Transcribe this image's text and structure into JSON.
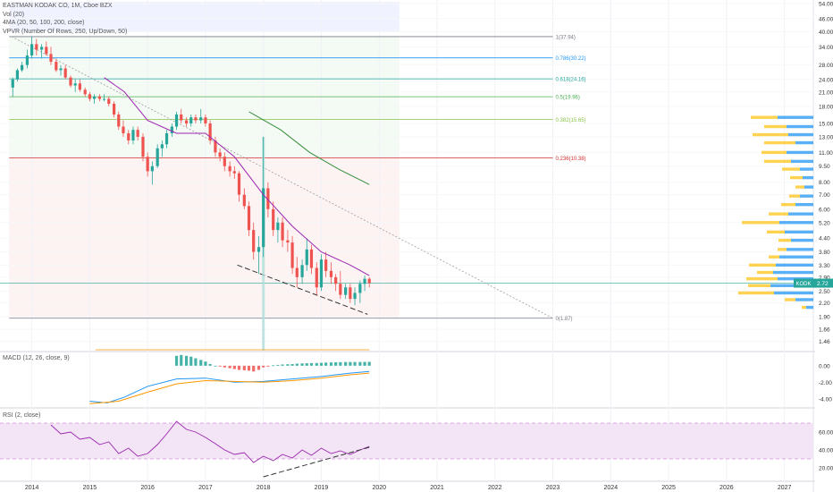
{
  "header": {
    "symbol_line": "EASTMAN KODAK CO, 1M, Cboe BZX",
    "indicators": [
      "Vol (20)",
      "4MA (20, 50, 100, 200, close)",
      "VPVR (Number Of Rows, 250, Up/Down, 50)"
    ],
    "macd_label": "MACD (12, 26, close, 9)",
    "rsi_label": "RSI (2, close)"
  },
  "price_badge": {
    "symbol": "KODK",
    "price": "2.72",
    "color": "#26a69a"
  },
  "colors": {
    "up": "#26a69a",
    "down": "#ef5350",
    "ma_fast": "#9c27b0",
    "ma_slow": "#388e3c",
    "macd": "#2196f3",
    "signal": "#ff9800",
    "rsi": "#9c27b0",
    "rsi_band": "#f3e5f5",
    "vpvr_up": "#2196f3",
    "vpvr_down": "#ffc107"
  },
  "chart_data": [
    {
      "type": "candlestick",
      "x_labels": [
        "2014",
        "2015",
        "2016",
        "2017",
        "2018",
        "2019",
        "2020",
        "2021",
        "2022",
        "2023",
        "2024",
        "2025",
        "2026",
        "2027"
      ],
      "x_range": [
        2013.45,
        2027.5
      ],
      "y_scale": "log",
      "y_range": [
        1.4,
        54
      ],
      "y_ticks": [
        "54.00",
        "46.00",
        "40.00",
        "34.00",
        "28.00",
        "24.00",
        "21.00",
        "18.00",
        "15.00",
        "13.00",
        "11.00",
        "9.50",
        "8.00",
        "7.00",
        "6.00",
        "5.20",
        "4.40",
        "3.80",
        "3.30",
        "2.90",
        "2.50",
        "2.20",
        "1.90",
        "1.66",
        "1.46"
      ],
      "grid": true,
      "candles": [
        [
          2013.67,
          22,
          24.5,
          20,
          24
        ],
        [
          2013.75,
          24,
          27,
          23.5,
          26.5
        ],
        [
          2013.83,
          26.5,
          29,
          26,
          28
        ],
        [
          2013.92,
          28,
          33,
          27,
          31
        ],
        [
          2014.0,
          31,
          38,
          30,
          35
        ],
        [
          2014.08,
          35,
          37,
          31,
          33
        ],
        [
          2014.17,
          33,
          35,
          30,
          34
        ],
        [
          2014.25,
          34,
          36,
          31,
          31.5
        ],
        [
          2014.33,
          31.5,
          34,
          28,
          29
        ],
        [
          2014.42,
          29,
          30,
          26,
          26.5
        ],
        [
          2014.5,
          26.5,
          28,
          25,
          27
        ],
        [
          2014.58,
          27,
          28,
          24,
          24.5
        ],
        [
          2014.67,
          24.5,
          25,
          22,
          22.5
        ],
        [
          2014.75,
          22.5,
          24,
          21,
          23
        ],
        [
          2014.83,
          23,
          24,
          21,
          21.5
        ],
        [
          2014.92,
          21.5,
          22,
          20,
          20.5
        ],
        [
          2015.0,
          20.5,
          21,
          19,
          19.5
        ],
        [
          2015.08,
          19.5,
          20.5,
          18.5,
          20
        ],
        [
          2015.17,
          20,
          20.5,
          19,
          19.5
        ],
        [
          2015.25,
          19.5,
          20.5,
          19,
          19.5
        ],
        [
          2015.33,
          19.5,
          20,
          18,
          18.5
        ],
        [
          2015.42,
          18.5,
          19,
          16,
          16.5
        ],
        [
          2015.5,
          16.5,
          17,
          14,
          14.5
        ],
        [
          2015.58,
          14.5,
          15.5,
          13,
          13.5
        ],
        [
          2015.67,
          13.5,
          14,
          12,
          12.5
        ],
        [
          2015.75,
          12.5,
          14.5,
          12,
          14
        ],
        [
          2015.83,
          14,
          14.5,
          12.5,
          13
        ],
        [
          2015.92,
          13,
          13.5,
          10,
          10.5
        ],
        [
          2016.0,
          10.5,
          11,
          8.5,
          9
        ],
        [
          2016.08,
          9,
          10,
          7.8,
          9.5
        ],
        [
          2016.17,
          9.5,
          12,
          9.3,
          11.5
        ],
        [
          2016.25,
          11.5,
          12.5,
          10.5,
          12
        ],
        [
          2016.33,
          12,
          14,
          11.5,
          13.5
        ],
        [
          2016.42,
          13.5,
          15,
          13,
          14.5
        ],
        [
          2016.5,
          14.5,
          17,
          14,
          16.5
        ],
        [
          2016.58,
          16.5,
          17.5,
          15,
          15.5
        ],
        [
          2016.67,
          15.5,
          16,
          14.5,
          15
        ],
        [
          2016.75,
          15,
          16.5,
          14.5,
          16
        ],
        [
          2016.83,
          16,
          16.5,
          15,
          15.5
        ],
        [
          2016.92,
          15.5,
          17.5,
          15,
          16
        ],
        [
          2017.0,
          16,
          16.5,
          14.5,
          15
        ],
        [
          2017.08,
          15,
          15.5,
          12,
          12.5
        ],
        [
          2017.17,
          12.5,
          13,
          10.5,
          11
        ],
        [
          2017.25,
          11,
          11.5,
          10,
          10.5
        ],
        [
          2017.33,
          10.5,
          11,
          9,
          9.5
        ],
        [
          2017.42,
          9.5,
          10,
          8.5,
          9
        ],
        [
          2017.5,
          9,
          9.5,
          8.3,
          8.8
        ],
        [
          2017.58,
          8.8,
          9,
          6.5,
          7
        ],
        [
          2017.67,
          7,
          7.5,
          6,
          6.2
        ],
        [
          2017.75,
          6.2,
          6.5,
          4.5,
          4.8
        ],
        [
          2017.83,
          4.8,
          5.2,
          3.5,
          3.8
        ],
        [
          2017.92,
          3.8,
          4.5,
          3.0,
          4.0
        ],
        [
          2018.0,
          4.0,
          13,
          3.6,
          7.5
        ],
        [
          2018.08,
          7.5,
          8,
          5.5,
          6
        ],
        [
          2018.17,
          6,
          6.5,
          4.5,
          4.8
        ],
        [
          2018.25,
          4.8,
          5.5,
          4.2,
          5.2
        ],
        [
          2018.33,
          5.2,
          5.5,
          4.0,
          4.3
        ],
        [
          2018.42,
          4.3,
          4.8,
          3.8,
          4.2
        ],
        [
          2018.5,
          4.2,
          4.5,
          3.0,
          3.2
        ],
        [
          2018.58,
          3.2,
          3.6,
          2.6,
          2.9
        ],
        [
          2018.67,
          2.9,
          3.5,
          2.7,
          3.3
        ],
        [
          2018.75,
          3.3,
          4.4,
          3.1,
          3.9
        ],
        [
          2018.83,
          3.9,
          4.1,
          3.0,
          3.2
        ],
        [
          2018.92,
          3.2,
          3.4,
          2.4,
          2.6
        ],
        [
          2019.0,
          2.6,
          3.7,
          2.5,
          3.5
        ],
        [
          2019.08,
          3.5,
          3.8,
          2.9,
          3.1
        ],
        [
          2019.17,
          3.1,
          3.4,
          2.7,
          2.9
        ],
        [
          2019.25,
          2.9,
          3.0,
          2.5,
          2.7
        ],
        [
          2019.33,
          2.7,
          3.1,
          2.3,
          2.4
        ],
        [
          2019.42,
          2.4,
          2.7,
          2.3,
          2.6
        ],
        [
          2019.5,
          2.6,
          2.7,
          2.2,
          2.3
        ],
        [
          2019.58,
          2.3,
          2.6,
          2.15,
          2.45
        ],
        [
          2019.67,
          2.45,
          2.8,
          2.2,
          2.7
        ],
        [
          2019.75,
          2.7,
          2.95,
          2.5,
          2.85
        ],
        [
          2019.83,
          2.85,
          2.9,
          2.6,
          2.72
        ]
      ],
      "ma_fast": [
        [
          2015.25,
          24.5
        ],
        [
          2015.6,
          21
        ],
        [
          2016.0,
          15.5
        ],
        [
          2016.5,
          13.5
        ],
        [
          2017.0,
          13.5
        ],
        [
          2017.5,
          10.5
        ],
        [
          2018.0,
          7.0
        ],
        [
          2018.5,
          5.0
        ],
        [
          2019.0,
          3.8
        ],
        [
          2019.5,
          3.3
        ],
        [
          2019.83,
          2.95
        ]
      ],
      "ma_slow": [
        [
          2017.75,
          17
        ],
        [
          2018.3,
          14
        ],
        [
          2018.8,
          11
        ],
        [
          2019.3,
          9.2
        ],
        [
          2019.83,
          7.8
        ]
      ],
      "fib_levels": [
        {
          "label": "1(37.94)",
          "value": 37.94,
          "color": "#787b86"
        },
        {
          "label": "0.786(30.22)",
          "value": 30.22,
          "color": "#2196f3"
        },
        {
          "label": "0.618(24.16)",
          "value": 24.16,
          "color": "#26a69a"
        },
        {
          "label": "0.5(19.96)",
          "value": 19.96,
          "color": "#4caf50"
        },
        {
          "label": "0.382(15.65)",
          "value": 15.65,
          "color": "#8bc34a"
        },
        {
          "label": "0.236(10.38)",
          "value": 10.38,
          "color": "#d32f2f"
        },
        {
          "label": "0(1.87)",
          "value": 1.87,
          "color": "#787b86"
        }
      ],
      "trendline": [
        [
          2013.65,
          37.94
        ],
        [
          2023.0,
          1.87
        ]
      ],
      "support_line": [
        [
          2017.55,
          3.3
        ],
        [
          2019.8,
          1.95
        ]
      ],
      "current_price": 2.72
    },
    {
      "type": "bar",
      "name": "MACD",
      "y_ticks": [
        "0.00",
        "-2.00",
        "-4.00"
      ],
      "y_range": [
        -5.0,
        1.5
      ],
      "histogram": [
        [
          2016.5,
          1.2
        ],
        [
          2016.58,
          1.3
        ],
        [
          2016.67,
          1.2
        ],
        [
          2016.75,
          1.1
        ],
        [
          2016.83,
          0.9
        ],
        [
          2016.92,
          0.7
        ],
        [
          2017.0,
          0.5
        ],
        [
          2017.08,
          0.2
        ],
        [
          2017.17,
          0.0
        ],
        [
          2017.25,
          -0.1
        ],
        [
          2017.33,
          -0.2
        ],
        [
          2017.42,
          -0.3
        ],
        [
          2017.5,
          -0.4
        ],
        [
          2017.58,
          -0.5
        ],
        [
          2017.67,
          -0.55
        ],
        [
          2017.75,
          -0.6
        ],
        [
          2017.83,
          -0.7
        ],
        [
          2017.92,
          -0.5
        ],
        [
          2018.0,
          -0.2
        ],
        [
          2018.08,
          -0.1
        ],
        [
          2018.17,
          0.05
        ],
        [
          2018.25,
          0.1
        ],
        [
          2018.33,
          0.15
        ],
        [
          2018.42,
          0.18
        ],
        [
          2018.5,
          0.2
        ],
        [
          2018.58,
          0.25
        ],
        [
          2018.67,
          0.28
        ],
        [
          2018.75,
          0.3
        ],
        [
          2018.83,
          0.32
        ],
        [
          2018.92,
          0.33
        ],
        [
          2019.0,
          0.35
        ],
        [
          2019.08,
          0.38
        ],
        [
          2019.17,
          0.4
        ],
        [
          2019.25,
          0.42
        ],
        [
          2019.33,
          0.43
        ],
        [
          2019.42,
          0.45
        ],
        [
          2019.5,
          0.45
        ],
        [
          2019.58,
          0.45
        ],
        [
          2019.67,
          0.45
        ],
        [
          2019.75,
          0.46
        ],
        [
          2019.83,
          0.47
        ]
      ],
      "macd_line": [
        [
          2015.0,
          -4.3
        ],
        [
          2015.3,
          -4.5
        ],
        [
          2015.6,
          -3.8
        ],
        [
          2016.0,
          -2.5
        ],
        [
          2016.5,
          -1.6
        ],
        [
          2017.0,
          -1.5
        ],
        [
          2017.5,
          -2.0
        ],
        [
          2018.0,
          -1.9
        ],
        [
          2018.5,
          -1.6
        ],
        [
          2019.0,
          -1.3
        ],
        [
          2019.5,
          -0.9
        ],
        [
          2019.83,
          -0.7
        ]
      ],
      "signal_line": [
        [
          2015.0,
          -4.6
        ],
        [
          2015.5,
          -4.3
        ],
        [
          2016.0,
          -3.2
        ],
        [
          2016.5,
          -2.2
        ],
        [
          2017.0,
          -1.8
        ],
        [
          2017.5,
          -1.9
        ],
        [
          2018.0,
          -2.0
        ],
        [
          2018.5,
          -1.8
        ],
        [
          2019.0,
          -1.5
        ],
        [
          2019.5,
          -1.1
        ],
        [
          2019.83,
          -0.9
        ]
      ]
    },
    {
      "type": "line",
      "name": "RSI",
      "y_ticks": [
        "60.00",
        "40.00",
        "20.00"
      ],
      "y_range": [
        8,
        85
      ],
      "band": [
        30,
        70
      ],
      "values": [
        [
          2014.33,
          68
        ],
        [
          2014.5,
          58
        ],
        [
          2014.67,
          60
        ],
        [
          2014.83,
          52
        ],
        [
          2015.0,
          54
        ],
        [
          2015.17,
          46
        ],
        [
          2015.33,
          49
        ],
        [
          2015.5,
          36
        ],
        [
          2015.67,
          42
        ],
        [
          2015.83,
          33
        ],
        [
          2016.0,
          36
        ],
        [
          2016.17,
          46
        ],
        [
          2016.33,
          58
        ],
        [
          2016.5,
          72
        ],
        [
          2016.67,
          63
        ],
        [
          2016.83,
          60
        ],
        [
          2017.0,
          54
        ],
        [
          2017.17,
          47
        ],
        [
          2017.33,
          40
        ],
        [
          2017.5,
          35
        ],
        [
          2017.67,
          37
        ],
        [
          2017.83,
          26
        ],
        [
          2018.0,
          33
        ],
        [
          2018.17,
          28
        ],
        [
          2018.33,
          35
        ],
        [
          2018.5,
          31
        ],
        [
          2018.67,
          40
        ],
        [
          2018.83,
          34
        ],
        [
          2019.0,
          42
        ],
        [
          2019.17,
          36
        ],
        [
          2019.33,
          39
        ],
        [
          2019.5,
          35
        ],
        [
          2019.67,
          40
        ],
        [
          2019.83,
          44
        ]
      ],
      "rsi_trendline": [
        [
          2018.0,
          10
        ],
        [
          2019.83,
          43
        ]
      ]
    }
  ],
  "vpvr_rows": [
    {
      "price": 16.0,
      "up": 40,
      "down": 30
    },
    {
      "price": 14.5,
      "up": 30,
      "down": 25
    },
    {
      "price": 13.3,
      "up": 28,
      "down": 40
    },
    {
      "price": 12.2,
      "up": 20,
      "down": 35
    },
    {
      "price": 11.0,
      "up": 30,
      "down": 28
    },
    {
      "price": 10.0,
      "up": 25,
      "down": 30
    },
    {
      "price": 9.2,
      "up": 15,
      "down": 20
    },
    {
      "price": 8.4,
      "up": 12,
      "down": 14
    },
    {
      "price": 7.6,
      "up": 10,
      "down": 10
    },
    {
      "price": 6.9,
      "up": 15,
      "down": 12
    },
    {
      "price": 6.3,
      "up": 20,
      "down": 16
    },
    {
      "price": 5.7,
      "up": 28,
      "down": 22
    },
    {
      "price": 5.2,
      "up": 38,
      "down": 42
    },
    {
      "price": 4.7,
      "up": 32,
      "down": 20
    },
    {
      "price": 4.3,
      "up": 25,
      "down": 14
    },
    {
      "price": 3.9,
      "up": 30,
      "down": 10
    },
    {
      "price": 3.6,
      "up": 38,
      "down": 12
    },
    {
      "price": 3.3,
      "up": 42,
      "down": 30
    },
    {
      "price": 3.05,
      "up": 45,
      "down": 18
    },
    {
      "price": 2.85,
      "up": 40,
      "down": 35
    },
    {
      "price": 2.65,
      "up": 48,
      "down": 25
    },
    {
      "price": 2.45,
      "up": 44,
      "down": 40
    },
    {
      "price": 2.28,
      "up": 20,
      "down": 12
    },
    {
      "price": 2.1,
      "up": 8,
      "down": 5
    }
  ]
}
